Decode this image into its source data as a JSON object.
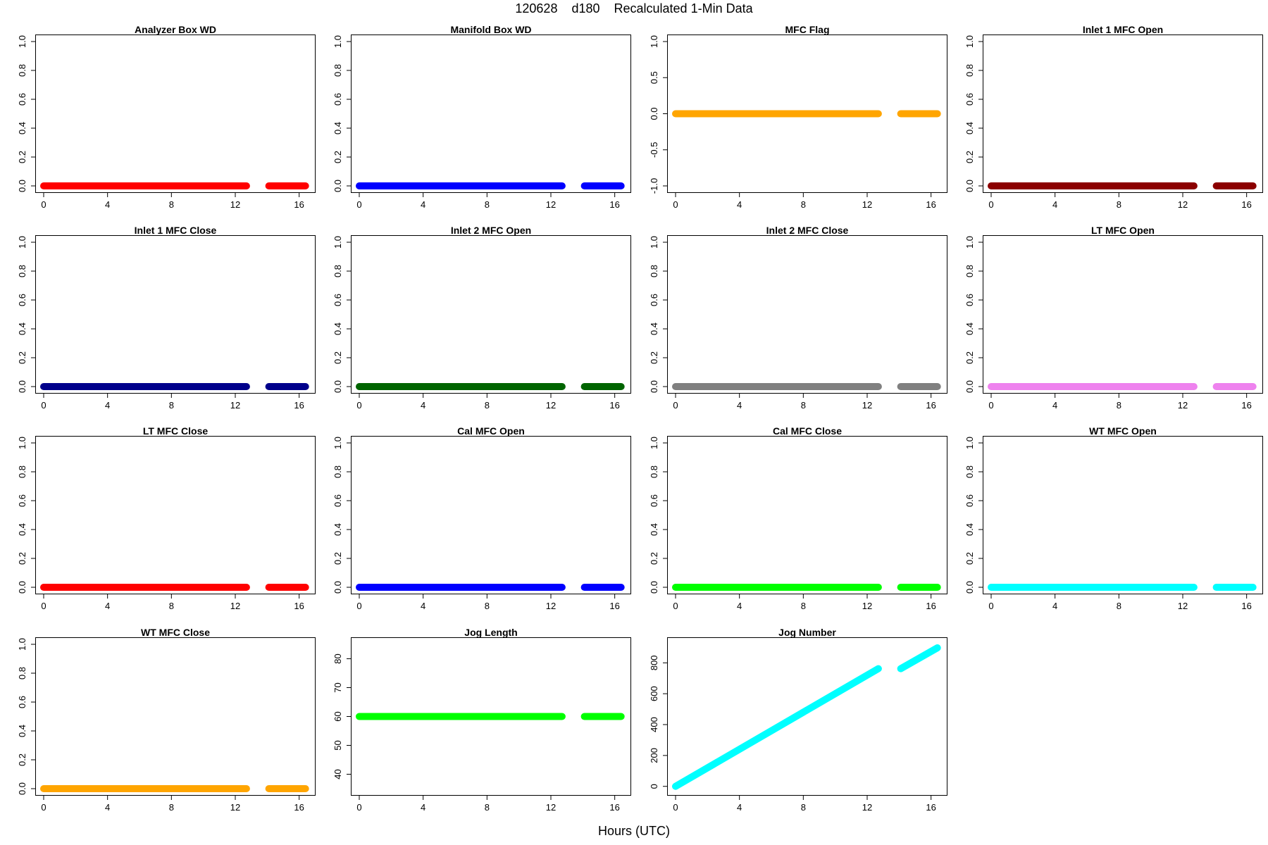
{
  "title": "120628    d180    Recalculated 1-Min Data",
  "xlabel": "Hours (UTC)",
  "x_ticks": [
    0,
    4,
    8,
    12,
    16
  ],
  "x_range": [
    0,
    16.5
  ],
  "gap_hours": [
    12.7,
    14.1
  ],
  "chart_data": [
    {
      "type": "scatter",
      "title": "Analyzer Box WD",
      "color": "#ff0000",
      "ylim": [
        0,
        1
      ],
      "y_ticks": [
        "0.0",
        "0.2",
        "0.4",
        "0.6",
        "0.8",
        "1.0"
      ],
      "x": [
        0,
        12.7,
        14.1,
        16.4
      ],
      "y": [
        0,
        0,
        0,
        0
      ]
    },
    {
      "type": "scatter",
      "title": "Manifold Box WD",
      "color": "#0000ff",
      "ylim": [
        0,
        1
      ],
      "y_ticks": [
        "0.0",
        "0.2",
        "0.4",
        "0.6",
        "0.8",
        "1.0"
      ],
      "x": [
        0,
        12.7,
        14.1,
        16.4
      ],
      "y": [
        0,
        0,
        0,
        0
      ]
    },
    {
      "type": "scatter",
      "title": "MFC Flag",
      "color": "#ffa500",
      "ylim": [
        -1,
        1
      ],
      "y_ticks": [
        "-1.0",
        "-0.5",
        "0.0",
        "0.5",
        "1.0"
      ],
      "x": [
        0,
        12.7,
        14.1,
        16.4
      ],
      "y": [
        0,
        0,
        0,
        0
      ]
    },
    {
      "type": "scatter",
      "title": "Inlet 1 MFC Open",
      "color": "#8b0000",
      "ylim": [
        0,
        1
      ],
      "y_ticks": [
        "0.0",
        "0.2",
        "0.4",
        "0.6",
        "0.8",
        "1.0"
      ],
      "x": [
        0,
        12.7,
        14.1,
        16.4
      ],
      "y": [
        0,
        0,
        0,
        0
      ]
    },
    {
      "type": "scatter",
      "title": "Inlet 1 MFC Close",
      "color": "#00008b",
      "ylim": [
        0,
        1
      ],
      "y_ticks": [
        "0.0",
        "0.2",
        "0.4",
        "0.6",
        "0.8",
        "1.0"
      ],
      "x": [
        0,
        12.7,
        14.1,
        16.4
      ],
      "y": [
        0,
        0,
        0,
        0
      ]
    },
    {
      "type": "scatter",
      "title": "Inlet 2 MFC Open",
      "color": "#006400",
      "ylim": [
        0,
        1
      ],
      "y_ticks": [
        "0.0",
        "0.2",
        "0.4",
        "0.6",
        "0.8",
        "1.0"
      ],
      "x": [
        0,
        12.7,
        14.1,
        16.4
      ],
      "y": [
        0,
        0,
        0,
        0
      ]
    },
    {
      "type": "scatter",
      "title": "Inlet 2 MFC Close",
      "color": "#808080",
      "ylim": [
        0,
        1
      ],
      "y_ticks": [
        "0.0",
        "0.2",
        "0.4",
        "0.6",
        "0.8",
        "1.0"
      ],
      "x": [
        0,
        12.7,
        14.1,
        16.4
      ],
      "y": [
        0,
        0,
        0,
        0
      ]
    },
    {
      "type": "scatter",
      "title": "LT MFC Open",
      "color": "#ee82ee",
      "ylim": [
        0,
        1
      ],
      "y_ticks": [
        "0.0",
        "0.2",
        "0.4",
        "0.6",
        "0.8",
        "1.0"
      ],
      "x": [
        0,
        12.7,
        14.1,
        16.4
      ],
      "y": [
        0,
        0,
        0,
        0
      ]
    },
    {
      "type": "scatter",
      "title": "LT MFC Close",
      "color": "#ff0000",
      "ylim": [
        0,
        1
      ],
      "y_ticks": [
        "0.0",
        "0.2",
        "0.4",
        "0.6",
        "0.8",
        "1.0"
      ],
      "x": [
        0,
        12.7,
        14.1,
        16.4
      ],
      "y": [
        0,
        0,
        0,
        0
      ]
    },
    {
      "type": "scatter",
      "title": "Cal MFC Open",
      "color": "#0000ff",
      "ylim": [
        0,
        1
      ],
      "y_ticks": [
        "0.0",
        "0.2",
        "0.4",
        "0.6",
        "0.8",
        "1.0"
      ],
      "x": [
        0,
        12.7,
        14.1,
        16.4
      ],
      "y": [
        0,
        0,
        0,
        0
      ]
    },
    {
      "type": "scatter",
      "title": "Cal MFC Close",
      "color": "#00ff00",
      "ylim": [
        0,
        1
      ],
      "y_ticks": [
        "0.0",
        "0.2",
        "0.4",
        "0.6",
        "0.8",
        "1.0"
      ],
      "x": [
        0,
        12.7,
        14.1,
        16.4
      ],
      "y": [
        0,
        0,
        0,
        0
      ]
    },
    {
      "type": "scatter",
      "title": "WT MFC Open",
      "color": "#00ffff",
      "ylim": [
        0,
        1
      ],
      "y_ticks": [
        "0.0",
        "0.2",
        "0.4",
        "0.6",
        "0.8",
        "1.0"
      ],
      "x": [
        0,
        12.7,
        14.1,
        16.4
      ],
      "y": [
        0,
        0,
        0,
        0
      ]
    },
    {
      "type": "scatter",
      "title": "WT MFC Close",
      "color": "#ffa500",
      "ylim": [
        0,
        1
      ],
      "y_ticks": [
        "0.0",
        "0.2",
        "0.4",
        "0.6",
        "0.8",
        "1.0"
      ],
      "x": [
        0,
        12.7,
        14.1,
        16.4
      ],
      "y": [
        0,
        0,
        0,
        0
      ]
    },
    {
      "type": "scatter",
      "title": "Jog Length",
      "color": "#00ff00",
      "ylim": [
        35,
        85
      ],
      "y_ticks": [
        "40",
        "50",
        "60",
        "70",
        "80"
      ],
      "x": [
        0,
        12.7,
        14.1,
        16.4
      ],
      "y": [
        60,
        60,
        60,
        60
      ]
    },
    {
      "type": "scatter",
      "title": "Jog Number",
      "color": "#00ffff",
      "ylim": [
        -15,
        920
      ],
      "y_ticks": [
        "0",
        "200",
        "400",
        "600",
        "800"
      ],
      "x": [
        0,
        12.7,
        14.1,
        16.4
      ],
      "y": [
        0,
        762,
        762,
        897
      ]
    }
  ]
}
